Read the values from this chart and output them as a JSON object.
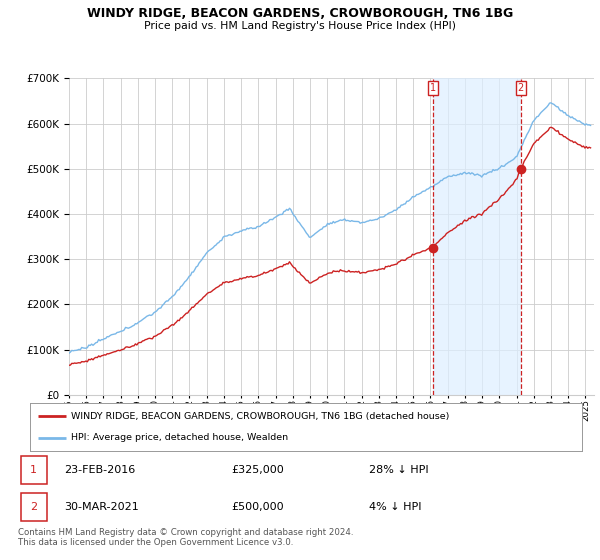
{
  "title": "WINDY RIDGE, BEACON GARDENS, CROWBOROUGH, TN6 1BG",
  "subtitle": "Price paid vs. HM Land Registry's House Price Index (HPI)",
  "legend_line1": "WINDY RIDGE, BEACON GARDENS, CROWBOROUGH, TN6 1BG (detached house)",
  "legend_line2": "HPI: Average price, detached house, Wealden",
  "sale1_date": "23-FEB-2016",
  "sale1_price": "£325,000",
  "sale1_hpi": "28% ↓ HPI",
  "sale2_date": "30-MAR-2021",
  "sale2_price": "£500,000",
  "sale2_hpi": "4% ↓ HPI",
  "footer": "Contains HM Land Registry data © Crown copyright and database right 2024.\nThis data is licensed under the Open Government Licence v3.0.",
  "hpi_color": "#7ab8e8",
  "price_color": "#cc2222",
  "sale_marker_color": "#cc2222",
  "vline_color": "#cc2222",
  "shade_color": "#ddeeff",
  "background_color": "#ffffff",
  "grid_color": "#cccccc",
  "ylim": [
    0,
    700000
  ],
  "xlim_start": 1995.0,
  "xlim_end": 2025.5,
  "sale1_year": 2016.13,
  "sale2_year": 2021.24,
  "sale1_price_val": 325000,
  "sale2_price_val": 500000
}
